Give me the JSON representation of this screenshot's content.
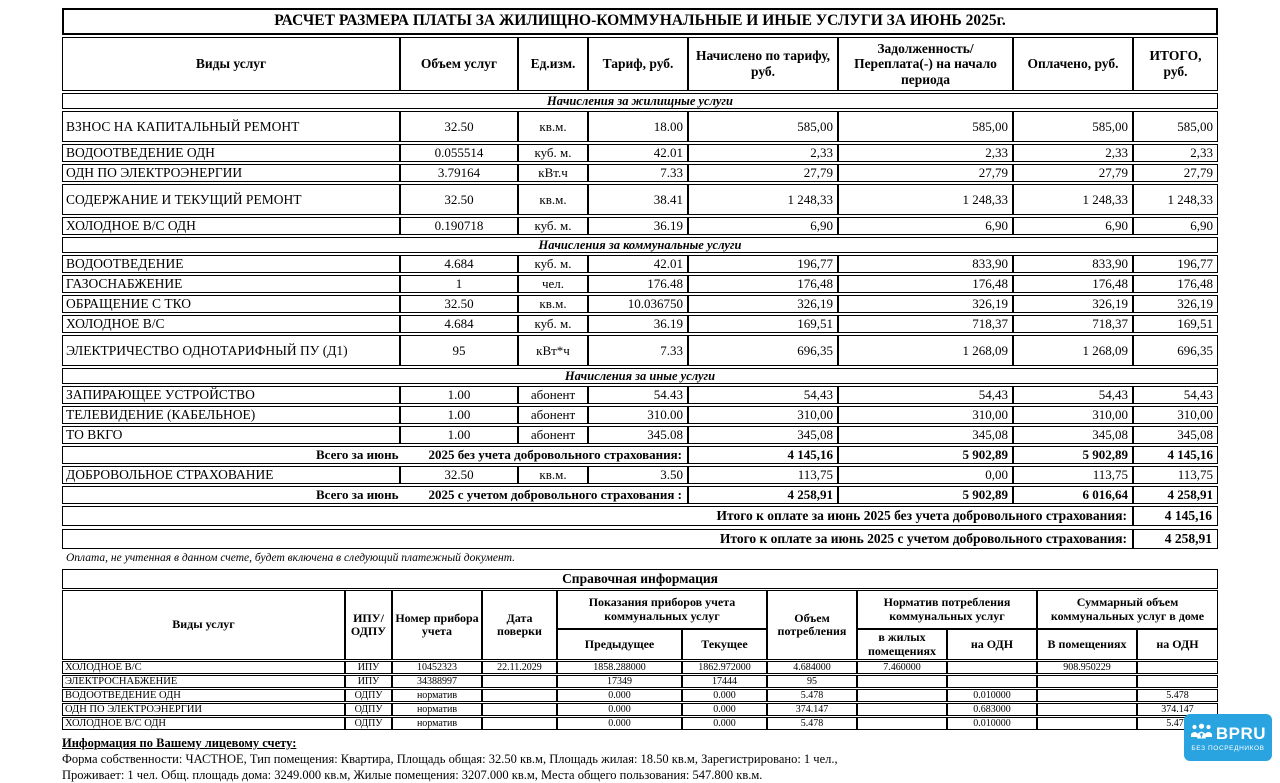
{
  "title": "РАСЧЕТ РАЗМЕРА ПЛАТЫ ЗА ЖИЛИЩНО-КОММУНАЛЬНЫЕ И ИНЫЕ УСЛУГИ ЗА ИЮНЬ 2025г.",
  "main_table": {
    "columns": [
      "Виды услуг",
      "Объем услуг",
      "Ед.изм.",
      "Тариф, руб.",
      "Начислено по тарифу, руб.",
      "Задолженность/ Переплата(-) на начало периода",
      "Оплачено, руб.",
      "ИТОГО, руб."
    ],
    "sections": [
      {
        "label": "Начисления за жилищные услуги",
        "rows": [
          {
            "name": "ВЗНОС НА КАПИТАЛЬНЫЙ РЕМОНТ",
            "volume": "32.50",
            "unit": "кв.м.",
            "tariff": "18.00",
            "accrued": "585,00",
            "debt": "585,00",
            "paid": "585,00",
            "total": "585,00",
            "tall": true
          },
          {
            "name": "ВОДООТВЕДЕНИЕ ОДН",
            "volume": "0.055514",
            "unit": "куб. м.",
            "tariff": "42.01",
            "accrued": "2,33",
            "debt": "2,33",
            "paid": "2,33",
            "total": "2,33",
            "tall": false
          },
          {
            "name": "ОДН ПО ЭЛЕКТРОЭНЕРГИИ",
            "volume": "3.79164",
            "unit": "кВт.ч",
            "tariff": "7.33",
            "accrued": "27,79",
            "debt": "27,79",
            "paid": "27,79",
            "total": "27,79",
            "tall": false
          },
          {
            "name": "СОДЕРЖАНИЕ И ТЕКУЩИЙ РЕМОНТ",
            "volume": "32.50",
            "unit": "кв.м.",
            "tariff": "38.41",
            "accrued": "1 248,33",
            "debt": "1 248,33",
            "paid": "1 248,33",
            "total": "1 248,33",
            "tall": true
          },
          {
            "name": "ХОЛОДНОЕ В/С ОДН",
            "volume": "0.190718",
            "unit": "куб. м.",
            "tariff": "36.19",
            "accrued": "6,90",
            "debt": "6,90",
            "paid": "6,90",
            "total": "6,90",
            "tall": false
          }
        ]
      },
      {
        "label": "Начисления за коммунальные услуги",
        "rows": [
          {
            "name": "ВОДООТВЕДЕНИЕ",
            "volume": "4.684",
            "unit": "куб. м.",
            "tariff": "42.01",
            "accrued": "196,77",
            "debt": "833,90",
            "paid": "833,90",
            "total": "196,77",
            "tall": false
          },
          {
            "name": "ГАЗОСНАБЖЕНИЕ",
            "volume": "1",
            "unit": "чел.",
            "tariff": "176.48",
            "accrued": "176,48",
            "debt": "176,48",
            "paid": "176,48",
            "total": "176,48",
            "tall": false
          },
          {
            "name": "ОБРАЩЕНИЕ С ТКО",
            "volume": "32.50",
            "unit": "кв.м.",
            "tariff": "10.036750",
            "accrued": "326,19",
            "debt": "326,19",
            "paid": "326,19",
            "total": "326,19",
            "tall": false
          },
          {
            "name": "ХОЛОДНОЕ В/С",
            "volume": "4.684",
            "unit": "куб. м.",
            "tariff": "36.19",
            "accrued": "169,51",
            "debt": "718,37",
            "paid": "718,37",
            "total": "169,51",
            "tall": false
          },
          {
            "name": "ЭЛЕКТРИЧЕСТВО ОДНОТАРИФНЫЙ ПУ (Д1)",
            "volume": "95",
            "unit": "кВт*ч",
            "tariff": "7.33",
            "accrued": "696,35",
            "debt": "1 268,09",
            "paid": "1 268,09",
            "total": "696,35",
            "tall": true
          }
        ]
      },
      {
        "label": "Начисления за иные услуги",
        "rows": [
          {
            "name": "ЗАПИРАЮЩЕЕ УСТРОЙСТВО",
            "volume": "1.00",
            "unit": "абонент",
            "tariff": "54.43",
            "accrued": "54,43",
            "debt": "54,43",
            "paid": "54,43",
            "total": "54,43",
            "tall": false
          },
          {
            "name": "ТЕЛЕВИДЕНИЕ (КАБЕЛЬНОЕ)",
            "volume": "1.00",
            "unit": "абонент",
            "tariff": "310.00",
            "accrued": "310,00",
            "debt": "310,00",
            "paid": "310,00",
            "total": "310,00",
            "tall": false
          },
          {
            "name": "ТО ВКГО",
            "volume": "1.00",
            "unit": "абонент",
            "tariff": "345.08",
            "accrued": "345,08",
            "debt": "345,08",
            "paid": "345,08",
            "total": "345,08",
            "tall": false
          }
        ]
      }
    ],
    "totals_row_1": {
      "label_left": "Всего за июнь",
      "label_right": "2025 без учета добровольного страхования:",
      "values": [
        "4 145,16",
        "5 902,89",
        "5 902,89",
        "4 145,16"
      ]
    },
    "insurance_row": {
      "name": "ДОБРОВОЛЬНОЕ СТРАХОВАНИЕ",
      "volume": "32.50",
      "unit": "кв.м.",
      "tariff": "3.50",
      "accrued": "113,75",
      "debt": "0,00",
      "paid": "113,75",
      "total": "113,75",
      "tall": false
    },
    "totals_row_2": {
      "label_left": "Всего за июнь",
      "label_right": "2025 с учетом добровольного страхования :",
      "values": [
        "4 258,91",
        "5 902,89",
        "6 016,64",
        "4 258,91"
      ]
    }
  },
  "grand_totals": [
    {
      "label": "Итого к оплате за июнь 2025 без учета добровольного страхования:",
      "value": "4 145,16"
    },
    {
      "label": "Итого к оплате за июнь 2025 с учетом добровольного страхования:",
      "value": "4 258,91"
    }
  ],
  "note": "Оплата, не учтенная в данном счете, будет включена в следующий платежный документ.",
  "reference_table": {
    "title": "Справочная информация",
    "headers": {
      "services": "Виды услуг",
      "meter_type": "ИПУ/ ОДПУ",
      "meter_number": "Номер прибора учета",
      "check_date": "Дата поверки",
      "readings_group": "Показания приборов учета коммунальных услуг",
      "readings_prev": "Предыдущее",
      "readings_curr": "Текущее",
      "volume": "Объем потребления",
      "norm_group": "Норматив потребления коммунальных услуг",
      "norm_living": "в жилых помещениях",
      "norm_odn": "на ОДН",
      "sum_group": "Суммарный объем коммунальных услуг в доме",
      "sum_premises": "В помещениях",
      "sum_odn": "на ОДН"
    },
    "rows": [
      [
        "ХОЛОДНОЕ В/С",
        "ИПУ",
        "10452323",
        "22.11.2029",
        "1858.288000",
        "1862.972000",
        "4.684000",
        "7.460000",
        "",
        "908.950229",
        ""
      ],
      [
        "ЭЛЕКТРОСНАБЖЕНИЕ",
        "ИПУ",
        "34388997",
        "",
        "17349",
        "17444",
        "95",
        "",
        "",
        "",
        ""
      ],
      [
        "ВОДООТВЕДЕНИЕ ОДН",
        "ОДПУ",
        "норматив",
        "",
        "0.000",
        "0.000",
        "5.478",
        "",
        "0.010000",
        "",
        "5.478"
      ],
      [
        "ОДН ПО ЭЛЕКТРОЭНЕРГИИ",
        "ОДПУ",
        "норматив",
        "",
        "0.000",
        "0.000",
        "374.147",
        "",
        "0.683000",
        "",
        "374.147"
      ],
      [
        "ХОЛОДНОЕ В/С ОДН",
        "ОДПУ",
        "норматив",
        "",
        "0.000",
        "0.000",
        "5.478",
        "",
        "0.010000",
        "",
        "5.478"
      ]
    ]
  },
  "account_info": {
    "heading": "Информация по Вашему лицевому счету:",
    "line1": "Форма собственности: ЧАСТНОЕ, Тип помещения: Квартира, Площадь общая: 32.50 кв.м, Площадь жилая: 18.50 кв.м, Зарегистрировано: 1 чел.,",
    "line2": "Проживает: 1 чел. Общ. площадь дома: 3249.000 кв.м, Жилые помещения: 3207.000 кв.м, Места общего пользования: 547.800 кв.м."
  },
  "logo": {
    "text": "BPRU",
    "subtext": "БЕЗ ПОСРЕДНИКОВ",
    "bg_color": "#29a4e1"
  }
}
